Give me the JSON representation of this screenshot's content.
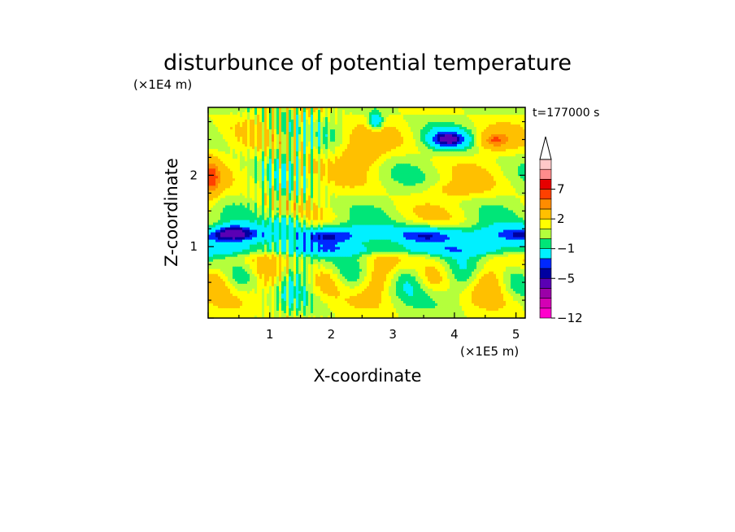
{
  "chart_data": {
    "type": "heatmap",
    "title": "disturbunce of potential temperature",
    "time_label": "t=177000 s",
    "xlabel": "X-coordinate",
    "ylabel": "Z-coordinate",
    "x_unit": "(×1E5 m)",
    "y_unit": "(×1E4 m)",
    "xlim": [
      0,
      5.15
    ],
    "ylim": [
      0,
      2.95
    ],
    "x_ticks": [
      "1",
      "2",
      "3",
      "4",
      "5"
    ],
    "y_ticks": [
      "1",
      "2"
    ],
    "colorbar": {
      "tick_labels": [
        "7",
        "2",
        "−1",
        "−5",
        "−12"
      ],
      "extend": "max",
      "colors": [
        "#ff00cc",
        "#d400b4",
        "#9b00a8",
        "#5a00b4",
        "#0000a0",
        "#0028ff",
        "#00f0ff",
        "#00e678",
        "#b4ff3c",
        "#ffff00",
        "#ffc000",
        "#ff8c00",
        "#ff4000",
        "#e60000",
        "#ff8c8c",
        "#ffc8c8"
      ]
    },
    "features": [
      {
        "x": 3.9,
        "z": 2.5,
        "value": -5
      },
      {
        "x": 2.7,
        "z": 2.7,
        "value": -4
      },
      {
        "x": 1.3,
        "z": 1.35,
        "value": -5
      },
      {
        "x": 0.5,
        "z": 1.2,
        "value": -4
      },
      {
        "x": 2.6,
        "z": 1.15,
        "value": -1
      },
      {
        "x": 4.5,
        "z": 1.2,
        "value": -1
      },
      {
        "x": 4.6,
        "z": 2.5,
        "value": 4
      },
      {
        "x": 0.1,
        "z": 1.9,
        "value": 3
      },
      {
        "x": 2.5,
        "z": 2.3,
        "value": 3
      },
      {
        "x": 1.9,
        "z": 1.6,
        "value": 2
      }
    ]
  }
}
